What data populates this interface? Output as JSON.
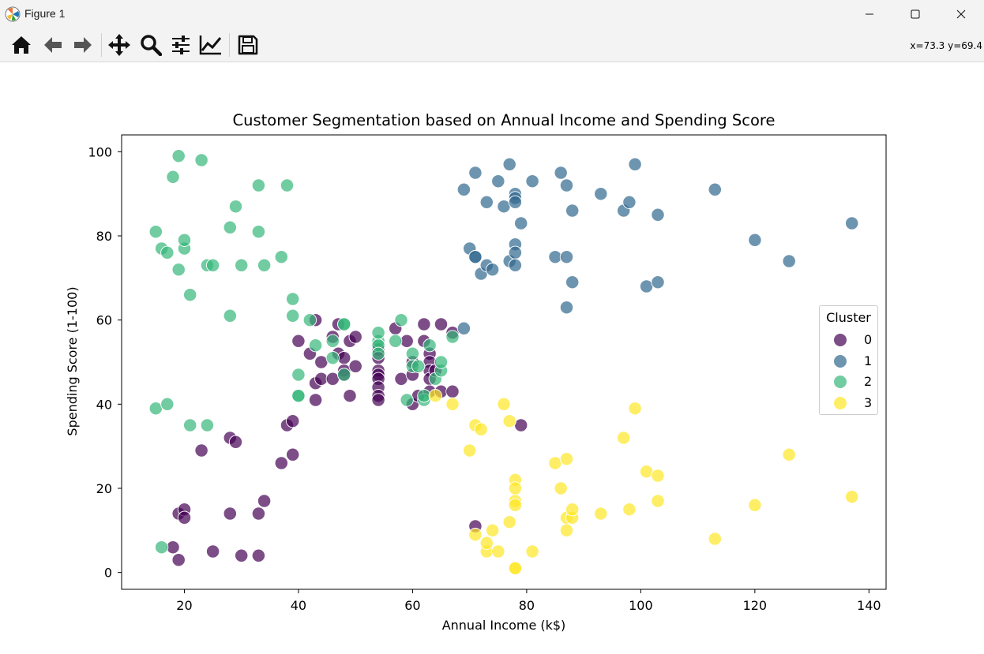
{
  "window": {
    "title": "Figure 1",
    "icon": "matplotlib-logo"
  },
  "window_controls": {
    "minimize": "minimize-icon",
    "maximize": "maximize-icon",
    "close": "close-icon"
  },
  "toolbar": {
    "tools": [
      "home-icon",
      "back-icon",
      "forward-icon",
      "pan-icon",
      "zoom-icon",
      "configure-subplots-icon",
      "edit-axes-icon",
      "save-icon"
    ],
    "coords": "x=73.3 y=69.4"
  },
  "chart_data": {
    "type": "scatter",
    "title": "Customer Segmentation based on Annual Income and Spending Score",
    "xlabel": "Annual Income (k$)",
    "ylabel": "Spending Score (1-100)",
    "xlim": [
      9,
      143
    ],
    "ylim": [
      -4,
      104
    ],
    "xticks": [
      20,
      40,
      60,
      80,
      100,
      120,
      140
    ],
    "yticks": [
      0,
      20,
      40,
      60,
      80,
      100
    ],
    "grid": false,
    "legend": {
      "title": "Cluster",
      "placement": "center-right"
    },
    "series": [
      {
        "name": "0",
        "color": "#440154",
        "points": [
          [
            18,
            6
          ],
          [
            19,
            3
          ],
          [
            19,
            14
          ],
          [
            20,
            15
          ],
          [
            20,
            13
          ],
          [
            23,
            29
          ],
          [
            25,
            5
          ],
          [
            28,
            14
          ],
          [
            28,
            32
          ],
          [
            29,
            31
          ],
          [
            30,
            4
          ],
          [
            33,
            4
          ],
          [
            33,
            14
          ],
          [
            34,
            17
          ],
          [
            37,
            26
          ],
          [
            38,
            35
          ],
          [
            39,
            36
          ],
          [
            39,
            28
          ],
          [
            40,
            55
          ],
          [
            42,
            52
          ],
          [
            43,
            60
          ],
          [
            43,
            45
          ],
          [
            43,
            41
          ],
          [
            44,
            50
          ],
          [
            44,
            46
          ],
          [
            46,
            46
          ],
          [
            46,
            56
          ],
          [
            47,
            59
          ],
          [
            47,
            52
          ],
          [
            48,
            51
          ],
          [
            48,
            48
          ],
          [
            48,
            47
          ],
          [
            49,
            55
          ],
          [
            49,
            42
          ],
          [
            50,
            49
          ],
          [
            50,
            56
          ],
          [
            54,
            53
          ],
          [
            54,
            51
          ],
          [
            54,
            48
          ],
          [
            54,
            47
          ],
          [
            54,
            46
          ],
          [
            54,
            44
          ],
          [
            54,
            42
          ],
          [
            54,
            41
          ],
          [
            57,
            58
          ],
          [
            58,
            46
          ],
          [
            59,
            55
          ],
          [
            60,
            50
          ],
          [
            60,
            47
          ],
          [
            60,
            40
          ],
          [
            61,
            42
          ],
          [
            62,
            59
          ],
          [
            62,
            55
          ],
          [
            63,
            52
          ],
          [
            63,
            50
          ],
          [
            63,
            48
          ],
          [
            63,
            46
          ],
          [
            63,
            43
          ],
          [
            64,
            48
          ],
          [
            65,
            59
          ],
          [
            65,
            43
          ],
          [
            67,
            57
          ],
          [
            67,
            43
          ],
          [
            71,
            11
          ],
          [
            79,
            35
          ]
        ]
      },
      {
        "name": "1",
        "color": "#31688e",
        "points": [
          [
            69,
            91
          ],
          [
            70,
            77
          ],
          [
            71,
            95
          ],
          [
            71,
            75
          ],
          [
            71,
            75
          ],
          [
            72,
            71
          ],
          [
            73,
            88
          ],
          [
            73,
            73
          ],
          [
            74,
            72
          ],
          [
            75,
            93
          ],
          [
            76,
            87
          ],
          [
            77,
            97
          ],
          [
            77,
            74
          ],
          [
            78,
            90
          ],
          [
            78,
            89
          ],
          [
            78,
            88
          ],
          [
            78,
            78
          ],
          [
            78,
            76
          ],
          [
            78,
            73
          ],
          [
            79,
            83
          ],
          [
            81,
            93
          ],
          [
            85,
            75
          ],
          [
            86,
            95
          ],
          [
            87,
            75
          ],
          [
            87,
            63
          ],
          [
            87,
            92
          ],
          [
            88,
            86
          ],
          [
            88,
            69
          ],
          [
            93,
            90
          ],
          [
            97,
            86
          ],
          [
            98,
            88
          ],
          [
            99,
            97
          ],
          [
            101,
            68
          ],
          [
            103,
            85
          ],
          [
            103,
            69
          ],
          [
            113,
            91
          ],
          [
            120,
            79
          ],
          [
            126,
            74
          ],
          [
            137,
            83
          ],
          [
            69,
            58
          ]
        ]
      },
      {
        "name": "2",
        "color": "#35b779",
        "points": [
          [
            15,
            39
          ],
          [
            15,
            81
          ],
          [
            16,
            6
          ],
          [
            16,
            77
          ],
          [
            17,
            40
          ],
          [
            17,
            76
          ],
          [
            18,
            94
          ],
          [
            19,
            99
          ],
          [
            19,
            72
          ],
          [
            20,
            77
          ],
          [
            20,
            79
          ],
          [
            21,
            35
          ],
          [
            21,
            66
          ],
          [
            23,
            98
          ],
          [
            24,
            35
          ],
          [
            24,
            73
          ],
          [
            25,
            73
          ],
          [
            28,
            82
          ],
          [
            28,
            61
          ],
          [
            29,
            87
          ],
          [
            30,
            73
          ],
          [
            33,
            92
          ],
          [
            33,
            81
          ],
          [
            34,
            73
          ],
          [
            37,
            75
          ],
          [
            38,
            92
          ],
          [
            39,
            61
          ],
          [
            39,
            65
          ],
          [
            40,
            47
          ],
          [
            40,
            42
          ],
          [
            40,
            42
          ],
          [
            42,
            60
          ],
          [
            43,
            54
          ],
          [
            46,
            51
          ],
          [
            46,
            55
          ],
          [
            48,
            59
          ],
          [
            48,
            59
          ],
          [
            48,
            47
          ],
          [
            54,
            55
          ],
          [
            54,
            54
          ],
          [
            54,
            57
          ],
          [
            54,
            52
          ],
          [
            57,
            55
          ],
          [
            58,
            60
          ],
          [
            59,
            41
          ],
          [
            60,
            52
          ],
          [
            60,
            49
          ],
          [
            61,
            49
          ],
          [
            62,
            41
          ],
          [
            62,
            42
          ],
          [
            63,
            54
          ],
          [
            64,
            46
          ],
          [
            65,
            48
          ],
          [
            65,
            50
          ],
          [
            67,
            56
          ]
        ]
      },
      {
        "name": "3",
        "color": "#fde725",
        "points": [
          [
            64,
            42
          ],
          [
            67,
            40
          ],
          [
            70,
            29
          ],
          [
            71,
            35
          ],
          [
            71,
            9
          ],
          [
            72,
            34
          ],
          [
            73,
            5
          ],
          [
            73,
            7
          ],
          [
            74,
            10
          ],
          [
            75,
            5
          ],
          [
            76,
            40
          ],
          [
            77,
            12
          ],
          [
            77,
            36
          ],
          [
            78,
            22
          ],
          [
            78,
            17
          ],
          [
            78,
            20
          ],
          [
            78,
            16
          ],
          [
            78,
            1
          ],
          [
            78,
            1
          ],
          [
            81,
            5
          ],
          [
            85,
            26
          ],
          [
            86,
            20
          ],
          [
            87,
            27
          ],
          [
            87,
            13
          ],
          [
            87,
            10
          ],
          [
            88,
            13
          ],
          [
            88,
            15
          ],
          [
            93,
            14
          ],
          [
            97,
            32
          ],
          [
            98,
            15
          ],
          [
            99,
            39
          ],
          [
            101,
            24
          ],
          [
            103,
            17
          ],
          [
            103,
            23
          ],
          [
            113,
            8
          ],
          [
            120,
            16
          ],
          [
            126,
            28
          ],
          [
            137,
            18
          ]
        ]
      }
    ]
  }
}
